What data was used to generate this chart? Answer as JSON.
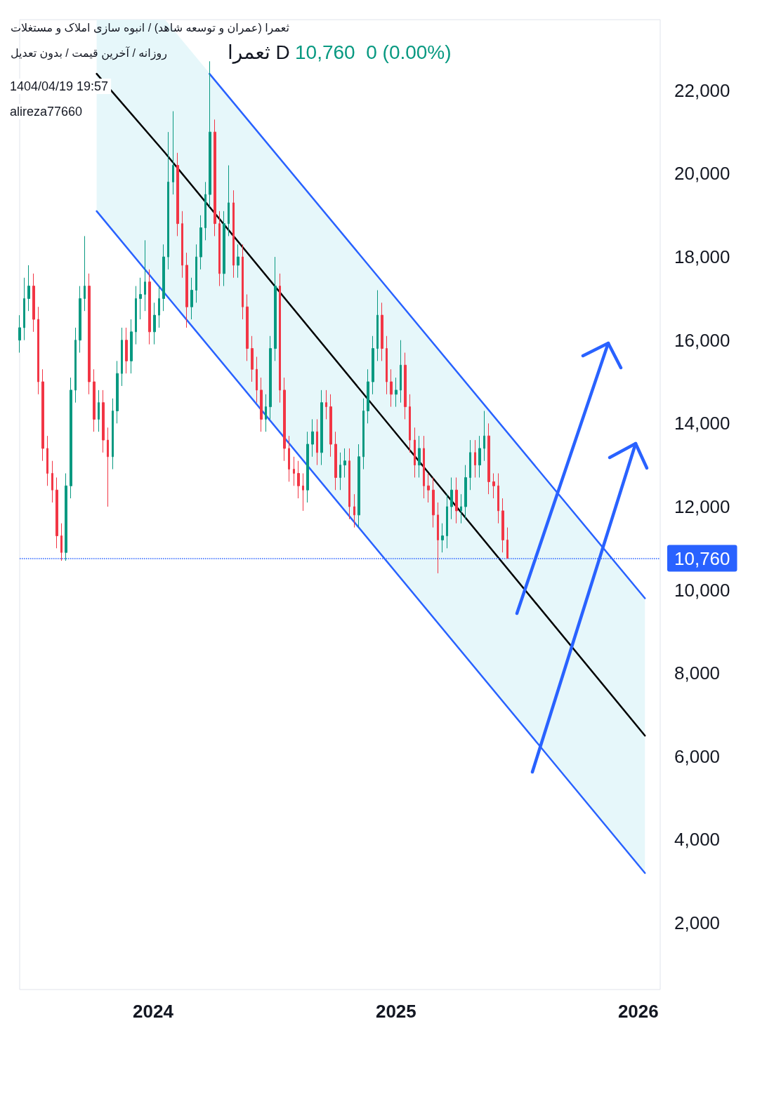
{
  "chart_data": {
    "type": "candlestick",
    "title": "ثعمرا (عمران و توسعه شاهد) / انبوه سازی املاک و مستغلات",
    "subtitle": "روزانه / آخرین قیمت / بدون تعدیل",
    "annotations": [
      "ثعمرا D",
      "10,760  0 (0.00%)",
      "1404/04/19 19:57",
      "alireza77660"
    ],
    "xlim": [
      "2023-06-14",
      "2026-02-03"
    ],
    "xticks": [
      "2024",
      "2025",
      "2026"
    ],
    "ylim": [
      400,
      23700
    ],
    "yticks": [
      {
        "value": 2000,
        "label": "2,000"
      },
      {
        "value": 4000,
        "label": "4,000"
      },
      {
        "value": 6000,
        "label": "6,000"
      },
      {
        "value": 8000,
        "label": "8,000"
      },
      {
        "value": 10000,
        "label": "10,000"
      },
      {
        "value": 12000,
        "label": "12,000"
      },
      {
        "value": 14000,
        "label": "14,000"
      },
      {
        "value": 16000,
        "label": "16,000"
      },
      {
        "value": 18000,
        "label": "18,000"
      },
      {
        "value": 20000,
        "label": "20,000"
      },
      {
        "value": 22000,
        "label": "22,000"
      }
    ],
    "marker": "none",
    "ref_lines": [
      {
        "axis": "y",
        "value": 10760,
        "label": "10,760",
        "color": "#2962ff",
        "line_style": "dotted"
      }
    ],
    "series": [
      {
        "x": [
          "2023-06-14",
          "2023-06-21",
          "2023-06-28",
          "2023-07-05",
          "2023-07-12",
          "2023-07-19",
          "2023-07-26",
          "2023-08-02",
          "2023-08-09",
          "2023-08-16",
          "2023-08-23",
          "2023-08-30",
          "2023-09-06",
          "2023-09-13",
          "2023-09-20",
          "2023-09-27",
          "2023-10-04",
          "2023-10-11",
          "2023-10-18",
          "2023-10-25",
          "2023-11-01",
          "2023-11-08",
          "2023-11-15",
          "2023-11-22",
          "2023-11-29",
          "2023-12-06",
          "2023-12-13",
          "2023-12-20",
          "2023-12-27",
          "2024-01-03",
          "2024-01-10",
          "2024-01-17",
          "2024-01-24",
          "2024-01-31",
          "2024-02-07",
          "2024-02-14",
          "2024-02-21",
          "2024-02-28",
          "2024-03-06",
          "2024-03-13",
          "2024-03-20",
          "2024-03-27",
          "2024-04-03",
          "2024-04-10",
          "2024-04-17",
          "2024-04-24",
          "2024-05-01",
          "2024-05-08",
          "2024-05-15",
          "2024-05-22",
          "2024-05-29",
          "2024-06-05",
          "2024-06-12",
          "2024-06-19",
          "2024-06-26",
          "2024-07-03",
          "2024-07-10",
          "2024-07-17",
          "2024-07-24",
          "2024-07-31",
          "2024-08-07",
          "2024-08-14",
          "2024-08-21",
          "2024-08-28",
          "2024-09-04",
          "2024-09-11",
          "2024-09-18",
          "2024-09-25",
          "2024-10-02",
          "2024-10-09",
          "2024-10-16",
          "2024-10-23",
          "2024-10-30",
          "2024-11-06",
          "2024-11-13",
          "2024-11-20",
          "2024-11-27",
          "2024-12-04",
          "2024-12-11",
          "2024-12-18",
          "2024-12-25",
          "2025-01-01",
          "2025-01-08",
          "2025-01-15",
          "2025-01-22",
          "2025-01-29",
          "2025-02-05",
          "2025-02-12",
          "2025-02-19",
          "2025-02-26",
          "2025-03-05",
          "2025-03-12",
          "2025-03-19",
          "2025-03-26",
          "2025-04-02",
          "2025-04-09",
          "2025-04-16",
          "2025-04-23",
          "2025-04-30",
          "2025-05-07",
          "2025-05-14",
          "2025-05-21",
          "2025-05-28",
          "2025-06-04",
          "2025-06-11",
          "2025-06-18"
        ],
        "ohlc": [
          [
            16000,
            16600,
            15700,
            16300
          ],
          [
            16300,
            17500,
            16000,
            17000
          ],
          [
            17000,
            17800,
            16700,
            17300
          ],
          [
            17300,
            17600,
            16200,
            16500
          ],
          [
            16500,
            16800,
            14700,
            15000
          ],
          [
            15000,
            15300,
            13100,
            13400
          ],
          [
            13400,
            13700,
            12500,
            12800
          ],
          [
            12800,
            13100,
            12100,
            12400
          ],
          [
            12400,
            12700,
            11000,
            11300
          ],
          [
            11300,
            11600,
            10700,
            10900
          ],
          [
            10900,
            12800,
            10700,
            12500
          ],
          [
            12500,
            15100,
            12200,
            14800
          ],
          [
            14800,
            16300,
            14500,
            16000
          ],
          [
            16000,
            17300,
            15700,
            17000
          ],
          [
            17000,
            18500,
            16700,
            17300
          ],
          [
            17300,
            17600,
            14700,
            15000
          ],
          [
            15000,
            15300,
            13800,
            14100
          ],
          [
            14100,
            14800,
            13800,
            14500
          ],
          [
            14500,
            14800,
            13300,
            13600
          ],
          [
            13600,
            13900,
            12000,
            13200
          ],
          [
            13200,
            14600,
            12900,
            14300
          ],
          [
            14300,
            15500,
            14000,
            15200
          ],
          [
            15200,
            16300,
            14900,
            16000
          ],
          [
            16000,
            16300,
            15200,
            15500
          ],
          [
            15500,
            16500,
            15200,
            16200
          ],
          [
            16200,
            17300,
            15900,
            17000
          ],
          [
            17000,
            17500,
            16500,
            17100
          ],
          [
            17100,
            18400,
            16700,
            17400
          ],
          [
            17400,
            17700,
            15900,
            16200
          ],
          [
            16200,
            16900,
            15900,
            16600
          ],
          [
            16600,
            17300,
            16300,
            17000
          ],
          [
            17000,
            18300,
            16700,
            18000
          ],
          [
            18000,
            21000,
            17700,
            19800
          ],
          [
            19800,
            21500,
            19500,
            20200
          ],
          [
            20200,
            20500,
            18500,
            18800
          ],
          [
            18800,
            19100,
            17500,
            17800
          ],
          [
            17800,
            18100,
            16300,
            16800
          ],
          [
            16800,
            17500,
            16500,
            17200
          ],
          [
            17200,
            18300,
            16900,
            18000
          ],
          [
            18000,
            19000,
            17700,
            18700
          ],
          [
            18700,
            19800,
            18400,
            19500
          ],
          [
            19500,
            22700,
            19200,
            21000
          ],
          [
            21000,
            21300,
            18500,
            18800
          ],
          [
            18800,
            19100,
            17300,
            17600
          ],
          [
            17600,
            19100,
            17300,
            18800
          ],
          [
            18800,
            20200,
            18500,
            19300
          ],
          [
            19300,
            19600,
            17500,
            17800
          ],
          [
            17800,
            18300,
            17500,
            18000
          ],
          [
            18000,
            18300,
            16500,
            16800
          ],
          [
            16800,
            17100,
            15500,
            15800
          ],
          [
            15800,
            16100,
            15000,
            15300
          ],
          [
            15300,
            15600,
            14500,
            14800
          ],
          [
            14800,
            15100,
            13800,
            14100
          ],
          [
            14100,
            14700,
            13800,
            14400
          ],
          [
            14400,
            16100,
            14100,
            15800
          ],
          [
            15800,
            18000,
            15500,
            17300
          ],
          [
            17300,
            17600,
            14500,
            14800
          ],
          [
            14800,
            15100,
            13100,
            13400
          ],
          [
            13400,
            13700,
            12600,
            12900
          ],
          [
            12900,
            13200,
            12500,
            12800
          ],
          [
            12800,
            13100,
            12200,
            12500
          ],
          [
            12500,
            12800,
            11900,
            12400
          ],
          [
            12400,
            13800,
            12100,
            13500
          ],
          [
            13500,
            14100,
            13200,
            13800
          ],
          [
            13800,
            14100,
            13000,
            13300
          ],
          [
            13300,
            14800,
            13000,
            14500
          ],
          [
            14500,
            14800,
            14100,
            14400
          ],
          [
            14400,
            14700,
            13200,
            13500
          ],
          [
            13500,
            13800,
            12400,
            12700
          ],
          [
            12700,
            13300,
            12400,
            13000
          ],
          [
            13000,
            13400,
            12700,
            13100
          ],
          [
            13100,
            13400,
            11700,
            12000
          ],
          [
            12000,
            12300,
            11500,
            11800
          ],
          [
            11800,
            13500,
            11500,
            13200
          ],
          [
            13200,
            14600,
            12900,
            14300
          ],
          [
            14300,
            15300,
            14000,
            15000
          ],
          [
            15000,
            16100,
            14700,
            15800
          ],
          [
            15800,
            17200,
            15500,
            16600
          ],
          [
            16600,
            16900,
            15500,
            15800
          ],
          [
            15800,
            16100,
            14700,
            15000
          ],
          [
            15000,
            15300,
            14400,
            14700
          ],
          [
            14700,
            15100,
            14400,
            14800
          ],
          [
            14800,
            16000,
            14500,
            15400
          ],
          [
            15400,
            15700,
            14100,
            14400
          ],
          [
            14400,
            14700,
            13300,
            13600
          ],
          [
            13600,
            13900,
            12700,
            13000
          ],
          [
            13000,
            13700,
            12700,
            13400
          ],
          [
            13400,
            13700,
            12200,
            12500
          ],
          [
            12500,
            12800,
            12100,
            12400
          ],
          [
            12400,
            12700,
            11500,
            11800
          ],
          [
            11800,
            12100,
            10400,
            11200
          ],
          [
            11200,
            11600,
            10900,
            11300
          ],
          [
            11300,
            12300,
            11000,
            12000
          ],
          [
            12000,
            12700,
            11700,
            12400
          ],
          [
            12400,
            12700,
            11600,
            11900
          ],
          [
            11900,
            12300,
            11600,
            12000
          ],
          [
            12000,
            13000,
            11700,
            12700
          ],
          [
            12700,
            13600,
            12400,
            13300
          ],
          [
            13300,
            13600,
            12700,
            13000
          ],
          [
            13000,
            13700,
            12700,
            13400
          ],
          [
            13400,
            14300,
            13100,
            13700
          ],
          [
            13700,
            14000,
            12300,
            12600
          ],
          [
            12600,
            12800,
            12200,
            12500
          ],
          [
            12500,
            12800,
            11600,
            11900
          ],
          [
            11900,
            12200,
            10900,
            11200
          ],
          [
            11200,
            11500,
            10760,
            10760
          ]
        ],
        "colors": [
          "#089981",
          "#089981",
          "#089981",
          "#f23645",
          "#f23645",
          "#f23645",
          "#f23645",
          "#f23645",
          "#f23645",
          "#f23645",
          "#089981",
          "#089981",
          "#089981",
          "#089981",
          "#089981",
          "#f23645",
          "#f23645",
          "#089981",
          "#f23645",
          "#f23645",
          "#089981",
          "#089981",
          "#089981",
          "#f23645",
          "#089981",
          "#089981",
          "#089981",
          "#089981",
          "#f23645",
          "#089981",
          "#089981",
          "#089981",
          "#089981",
          "#089981",
          "#f23645",
          "#f23645",
          "#f23645",
          "#089981",
          "#089981",
          "#089981",
          "#089981",
          "#089981",
          "#f23645",
          "#f23645",
          "#089981",
          "#089981",
          "#f23645",
          "#089981",
          "#f23645",
          "#f23645",
          "#f23645",
          "#f23645",
          "#f23645",
          "#089981",
          "#089981",
          "#089981",
          "#f23645",
          "#f23645",
          "#f23645",
          "#f23645",
          "#f23645",
          "#f23645",
          "#089981",
          "#089981",
          "#f23645",
          "#089981",
          "#f23645",
          "#f23645",
          "#f23645",
          "#089981",
          "#089981",
          "#f23645",
          "#f23645",
          "#089981",
          "#089981",
          "#089981",
          "#089981",
          "#089981",
          "#f23645",
          "#f23645",
          "#f23645",
          "#089981",
          "#089981",
          "#f23645",
          "#f23645",
          "#f23645",
          "#089981",
          "#f23645",
          "#f23645",
          "#f23645",
          "#f23645",
          "#089981",
          "#089981",
          "#089981",
          "#f23645",
          "#089981",
          "#089981",
          "#089981",
          "#f23645",
          "#089981",
          "#089981",
          "#f23645",
          "#f23645",
          "#f23645",
          "#f23645",
          "#f23645"
        ]
      },
      {
        "type": "line",
        "color": "#000000",
        "x": [
          "2023-10-08",
          "2024-01-19",
          "2026-01-11"
        ],
        "values": [
          22400,
          20500,
          6500
        ],
        "lower": [
          19100,
          17100,
          3200
        ],
        "upper": [
          23700,
          23700,
          9800
        ]
      },
      {
        "type": "line",
        "color": "#2962ff",
        "x": [
          "2024-03-26",
          "2026-01-11"
        ],
        "values": [
          22400,
          9800
        ]
      },
      {
        "type": "line",
        "color": "#2962ff",
        "x": [
          "2023-10-08",
          "2026-01-11"
        ],
        "values": [
          19100,
          3200
        ]
      }
    ]
  }
}
